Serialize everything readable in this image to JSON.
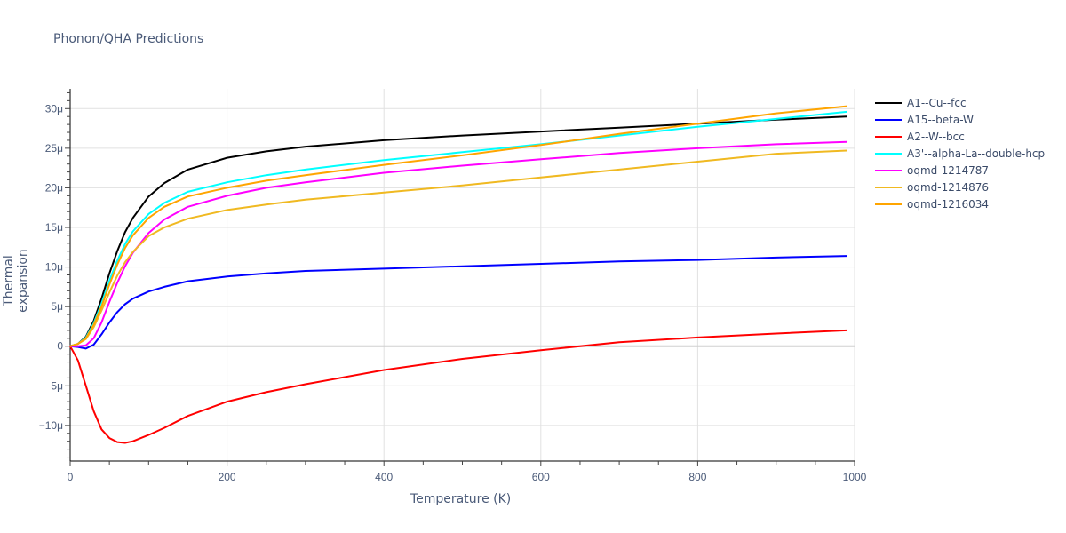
{
  "chart_data": {
    "type": "line",
    "title": "Phonon/QHA Predictions",
    "xlabel": "Temperature (K)",
    "ylabel": "Thermal expansion",
    "xlim": [
      0,
      1000
    ],
    "ylim": [
      -1.45e-05,
      3.25e-05
    ],
    "x_ticks": [
      0,
      200,
      400,
      600,
      800,
      1000
    ],
    "x_tick_labels": [
      "0",
      "200",
      "400",
      "600",
      "800",
      "1000"
    ],
    "y_ticks": [
      -1e-05,
      -5e-06,
      0,
      5e-06,
      1e-05,
      1.5e-05,
      2e-05,
      2.5e-05,
      3e-05
    ],
    "y_tick_labels": [
      "−10μ",
      "−5μ",
      "0",
      "5μ",
      "10μ",
      "15μ",
      "20μ",
      "25μ",
      "30μ"
    ],
    "grid": true,
    "legend_position": "right",
    "x": [
      0,
      10,
      20,
      30,
      40,
      50,
      60,
      70,
      80,
      100,
      120,
      150,
      200,
      250,
      300,
      400,
      500,
      600,
      700,
      800,
      900,
      990
    ],
    "series": [
      {
        "name": "A1--Cu--fcc",
        "color": "#000000",
        "values_micro": [
          0,
          0.3,
          1.2,
          3.2,
          6.0,
          9.2,
          12.0,
          14.4,
          16.2,
          18.9,
          20.6,
          22.3,
          23.8,
          24.6,
          25.2,
          26.0,
          26.6,
          27.1,
          27.6,
          28.1,
          28.6,
          29.0
        ]
      },
      {
        "name": "A15--beta-W",
        "color": "#0000ff",
        "values_micro": [
          0,
          -0.1,
          -0.3,
          0.2,
          1.5,
          3.0,
          4.3,
          5.3,
          6.0,
          6.9,
          7.5,
          8.2,
          8.8,
          9.2,
          9.5,
          9.8,
          10.1,
          10.4,
          10.7,
          10.9,
          11.2,
          11.4
        ]
      },
      {
        "name": "A2--W--bcc",
        "color": "#ff0000",
        "values_micro": [
          0,
          -1.8,
          -5.0,
          -8.2,
          -10.5,
          -11.6,
          -12.1,
          -12.2,
          -12.0,
          -11.2,
          -10.3,
          -8.8,
          -7.0,
          -5.8,
          -4.8,
          -3.0,
          -1.6,
          -0.5,
          0.5,
          1.1,
          1.6,
          2.0
        ]
      },
      {
        "name": "A3'--alpha-La--double-hcp",
        "color": "#00ffff",
        "values_micro": [
          0,
          0.3,
          1.1,
          2.9,
          5.4,
          8.3,
          10.8,
          12.9,
          14.5,
          16.7,
          18.1,
          19.5,
          20.7,
          21.6,
          22.3,
          23.5,
          24.5,
          25.5,
          26.6,
          27.7,
          28.7,
          29.6
        ]
      },
      {
        "name": "oqmd-1214787",
        "color": "#ff00ff",
        "values_micro": [
          0,
          0,
          0.1,
          1.0,
          3.0,
          5.6,
          8.0,
          10.1,
          11.8,
          14.3,
          16.0,
          17.6,
          19.0,
          20.0,
          20.7,
          21.9,
          22.8,
          23.6,
          24.4,
          25.0,
          25.5,
          25.8
        ]
      },
      {
        "name": "oqmd-1214876",
        "color": "#f0b921",
        "values_micro": [
          0,
          0.3,
          0.9,
          2.4,
          4.5,
          6.8,
          8.9,
          10.6,
          11.9,
          13.9,
          15.0,
          16.1,
          17.2,
          17.9,
          18.5,
          19.4,
          20.3,
          21.3,
          22.3,
          23.3,
          24.3,
          24.7
        ]
      },
      {
        "name": "oqmd-1216034",
        "color": "#ffa500",
        "values_micro": [
          0,
          0.3,
          1.0,
          2.7,
          5.0,
          7.8,
          10.3,
          12.4,
          14.0,
          16.2,
          17.6,
          18.9,
          20.0,
          20.9,
          21.6,
          22.9,
          24.1,
          25.4,
          26.8,
          28.1,
          29.4,
          30.3
        ]
      }
    ]
  },
  "legend": {
    "items": [
      {
        "label": "A1--Cu--fcc",
        "color": "#000000"
      },
      {
        "label": "A15--beta-W",
        "color": "#0000ff"
      },
      {
        "label": "A2--W--bcc",
        "color": "#ff0000"
      },
      {
        "label": "A3'--alpha-La--double-hcp",
        "color": "#00ffff"
      },
      {
        "label": "oqmd-1214787",
        "color": "#ff00ff"
      },
      {
        "label": "oqmd-1214876",
        "color": "#f0b921"
      },
      {
        "label": "oqmd-1216034",
        "color": "#ffa500"
      }
    ]
  }
}
